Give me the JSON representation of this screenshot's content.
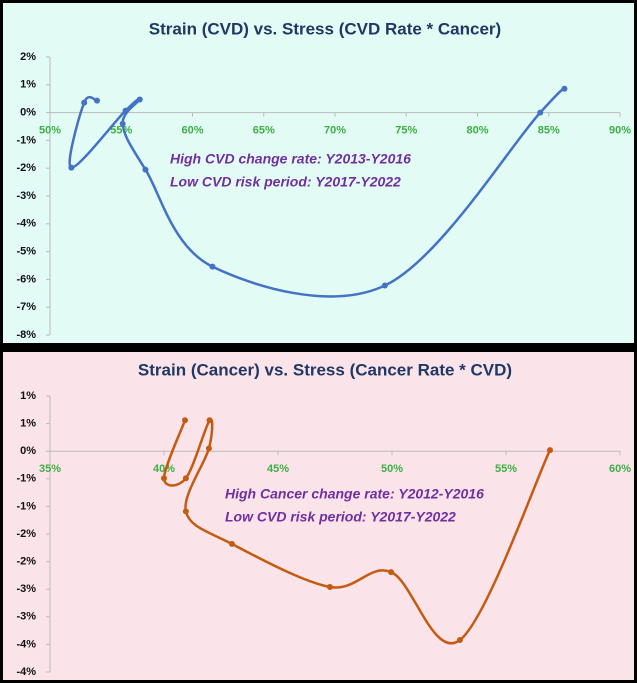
{
  "chart_data": [
    {
      "type": "scatter",
      "smooth": true,
      "title": "Strain (CVD) vs. Stress (CVD Rate * Cancer)",
      "annotations": [
        "High CVD change rate:  Y2013-Y2016",
        "Low CVD risk period:  Y2017-Y2022"
      ],
      "series": [
        {
          "color": "#4472c4",
          "x": [
            53.3,
            52.4,
            51.5,
            55.3,
            56.3,
            55.1,
            56.7,
            61.4,
            73.5,
            84.4,
            86.1
          ],
          "values": [
            0.43,
            0.36,
            -1.98,
            0.07,
            0.47,
            -0.4,
            -2.05,
            -5.54,
            -6.22,
            0.0,
            0.86
          ]
        }
      ],
      "xlim": [
        50,
        90
      ],
      "xticks": [
        {
          "value": 50,
          "label": "50%"
        },
        {
          "value": 55,
          "label": "55%"
        },
        {
          "value": 60,
          "label": "60%"
        },
        {
          "value": 65,
          "label": "65%"
        },
        {
          "value": 70,
          "label": "70%"
        },
        {
          "value": 75,
          "label": "75%"
        },
        {
          "value": 80,
          "label": "80%"
        },
        {
          "value": 85,
          "label": "85%"
        },
        {
          "value": 90,
          "label": "90%"
        }
      ],
      "ylim": [
        -8,
        2
      ],
      "yticks": [
        {
          "value": 2,
          "label": "2%"
        },
        {
          "value": 1,
          "label": "1%"
        },
        {
          "value": 0,
          "label": "0%"
        },
        {
          "value": -1,
          "label": "-1%"
        },
        {
          "value": -2,
          "label": "-2%"
        },
        {
          "value": -3,
          "label": "-3%"
        },
        {
          "value": -4,
          "label": "-4%"
        },
        {
          "value": -5,
          "label": "-5%"
        },
        {
          "value": -6,
          "label": "-6%"
        },
        {
          "value": -7,
          "label": "-7%"
        },
        {
          "value": -8,
          "label": "-8%"
        }
      ]
    },
    {
      "type": "scatter",
      "smooth": true,
      "title": "Strain (Cancer) vs. Stress (Cancer Rate * CVD)",
      "annotations": [
        "High Cancer change rate:  Y2012-Y2016",
        "Low CVD risk period:  Y2017-Y2022"
      ],
      "series": [
        {
          "color": "#c55a11",
          "x": [
            40.92,
            40.0,
            40.96,
            42.0,
            41.97,
            40.96,
            42.98,
            47.28,
            49.96,
            52.98,
            56.93
          ],
          "values": [
            0.56,
            -0.49,
            -0.49,
            0.56,
            0.05,
            -1.09,
            -1.68,
            -2.46,
            -2.19,
            -3.42,
            0.02
          ]
        }
      ],
      "xlim": [
        35,
        60
      ],
      "xticks": [
        {
          "value": 35,
          "label": "35%"
        },
        {
          "value": 40,
          "label": "40%"
        },
        {
          "value": 45,
          "label": "45%"
        },
        {
          "value": 50,
          "label": "50%"
        },
        {
          "value": 55,
          "label": "55%"
        },
        {
          "value": 60,
          "label": "60%"
        }
      ],
      "ylim": [
        -4,
        1
      ],
      "yticks": [
        {
          "value": 1,
          "label": "1%"
        },
        {
          "value": 0.5,
          "label": "1%"
        },
        {
          "value": 0,
          "label": "0%"
        },
        {
          "value": -0.5,
          "label": "-1%"
        },
        {
          "value": -1,
          "label": "-1%"
        },
        {
          "value": -1.5,
          "label": "-2%"
        },
        {
          "value": -2,
          "label": "-2%"
        },
        {
          "value": -2.5,
          "label": "-3%"
        },
        {
          "value": -3,
          "label": "-3%"
        },
        {
          "value": -3.5,
          "label": "-4%"
        },
        {
          "value": -4,
          "label": "-4%"
        }
      ]
    }
  ]
}
